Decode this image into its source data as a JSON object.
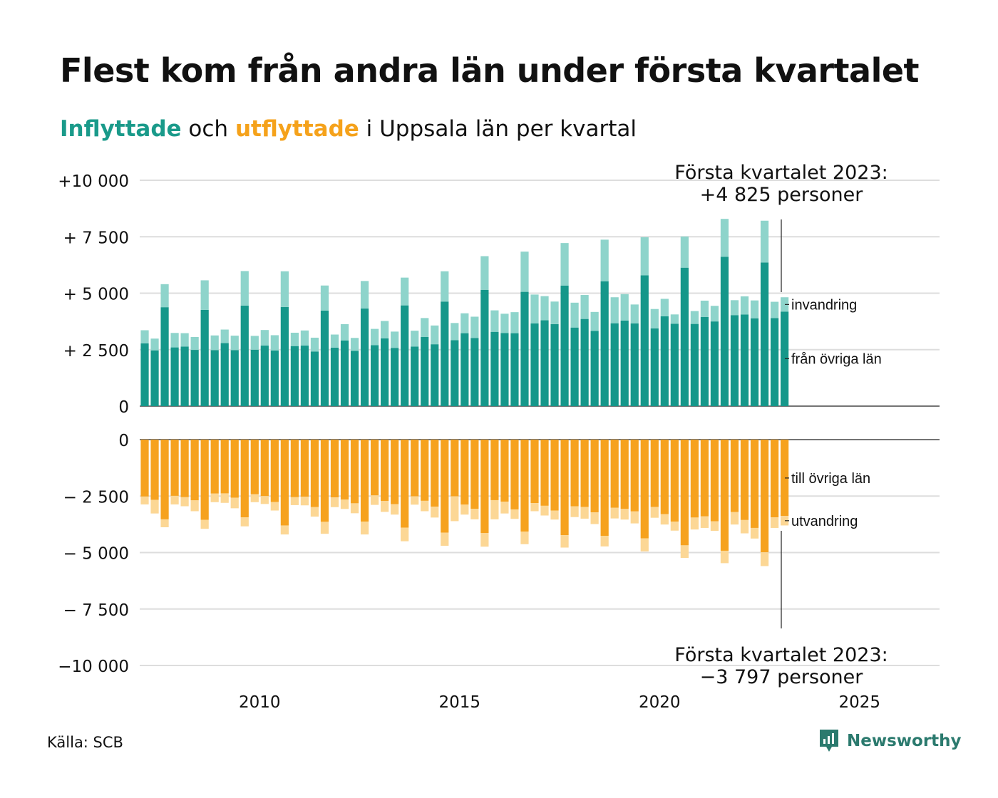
{
  "header": {
    "title": "Flest kom från andra län under första kvartalet",
    "subtitle_in": "Inflyttade",
    "subtitle_mid": " och ",
    "subtitle_out": "utflyttade",
    "subtitle_rest": " i Uppsala län per kvartal"
  },
  "footer": {
    "source": "Källa: SCB",
    "brand": "Newsworthy"
  },
  "colors": {
    "in_dark": "#15978a",
    "in_light": "#8ed4cb",
    "out_dark": "#f6a21e",
    "out_light": "#fcd795",
    "grid": "#dddddd",
    "axis": "#222222"
  },
  "chart_data": {
    "type": "bar",
    "stacked": true,
    "x_axis": {
      "ticks": [
        "2010",
        "2015",
        "2020",
        "2025"
      ],
      "range": [
        "2007-Q1",
        "2027-Q1"
      ]
    },
    "top_panel": {
      "y_ticks": [
        "+10 000",
        "+ 7 500",
        "+ 5 000",
        "+ 2 500",
        "0"
      ],
      "ylim": [
        0,
        10000
      ],
      "series": [
        {
          "name": "från övriga län",
          "color": "#15978a"
        },
        {
          "name": "invandring",
          "color": "#8ed4cb"
        }
      ]
    },
    "bottom_panel": {
      "y_ticks": [
        "0",
        "− 2 500",
        "− 5 000",
        "− 7 500",
        "−10 000"
      ],
      "ylim": [
        -10000,
        0
      ],
      "series": [
        {
          "name": "till övriga län",
          "color": "#f6a21e"
        },
        {
          "name": "utvandring",
          "color": "#fcd795"
        }
      ]
    },
    "annotations": {
      "top_line1": "Första kvartalet 2023:",
      "top_line2": "+4 825 personer",
      "bottom_line1": "Första kvartalet 2023:",
      "bottom_line2": "−3 797 personer"
    },
    "quarters": [
      "2007-Q1",
      "2007-Q2",
      "2007-Q3",
      "2007-Q4",
      "2008-Q1",
      "2008-Q2",
      "2008-Q3",
      "2008-Q4",
      "2009-Q1",
      "2009-Q2",
      "2009-Q3",
      "2009-Q4",
      "2010-Q1",
      "2010-Q2",
      "2010-Q3",
      "2010-Q4",
      "2011-Q1",
      "2011-Q2",
      "2011-Q3",
      "2011-Q4",
      "2012-Q1",
      "2012-Q2",
      "2012-Q3",
      "2012-Q4",
      "2013-Q1",
      "2013-Q2",
      "2013-Q3",
      "2013-Q4",
      "2014-Q1",
      "2014-Q2",
      "2014-Q3",
      "2014-Q4",
      "2015-Q1",
      "2015-Q2",
      "2015-Q3",
      "2015-Q4",
      "2016-Q1",
      "2016-Q2",
      "2016-Q3",
      "2016-Q4",
      "2017-Q1",
      "2017-Q2",
      "2017-Q3",
      "2017-Q4",
      "2018-Q1",
      "2018-Q2",
      "2018-Q3",
      "2018-Q4",
      "2019-Q1",
      "2019-Q2",
      "2019-Q3",
      "2019-Q4",
      "2020-Q1",
      "2020-Q2",
      "2020-Q3",
      "2020-Q4",
      "2021-Q1",
      "2021-Q2",
      "2021-Q3",
      "2021-Q4",
      "2022-Q1",
      "2022-Q2",
      "2022-Q3",
      "2022-Q4",
      "2023-Q1"
    ],
    "in_fran_ovriga_lan": [
      2780,
      2470,
      4380,
      2600,
      2640,
      2490,
      4260,
      2480,
      2790,
      2480,
      4450,
      2500,
      2680,
      2460,
      4390,
      2660,
      2680,
      2420,
      4230,
      2590,
      2910,
      2450,
      4320,
      2700,
      3000,
      2580,
      4460,
      2640,
      3060,
      2740,
      4630,
      2920,
      3230,
      3020,
      5150,
      3290,
      3240,
      3230,
      5060,
      3660,
      3800,
      3630,
      5340,
      3480,
      3860,
      3330,
      5530,
      3670,
      3790,
      3660,
      5790,
      3440,
      3980,
      3650,
      6130,
      3640,
      3950,
      3750,
      6610,
      4030,
      4060,
      3890,
      6360,
      3900,
      4180
    ],
    "in_invandring": [
      580,
      520,
      1020,
      640,
      590,
      570,
      1310,
      650,
      600,
      640,
      1530,
      610,
      690,
      680,
      1580,
      590,
      670,
      610,
      1110,
      580,
      720,
      570,
      1220,
      720,
      770,
      720,
      1230,
      700,
      840,
      830,
      1340,
      760,
      880,
      940,
      1490,
      950,
      850,
      930,
      1780,
      1280,
      1070,
      1000,
      1880,
      1100,
      1060,
      840,
      1840,
      1150,
      1170,
      840,
      1690,
      860,
      770,
      410,
      1380,
      570,
      720,
      690,
      1680,
      660,
      800,
      790,
      1850,
      720,
      640
    ],
    "out_till_ovriga_lan": [
      2520,
      2670,
      3530,
      2490,
      2550,
      2690,
      3550,
      2390,
      2380,
      2570,
      3440,
      2420,
      2500,
      2760,
      3800,
      2550,
      2530,
      2990,
      3640,
      2560,
      2650,
      2820,
      3630,
      2470,
      2720,
      2860,
      3900,
      2510,
      2710,
      2970,
      4120,
      2510,
      2880,
      3060,
      4140,
      2680,
      2750,
      3090,
      4070,
      2810,
      2930,
      3140,
      4230,
      2950,
      2980,
      3220,
      4260,
      3020,
      3070,
      3180,
      4370,
      2980,
      3300,
      3630,
      4680,
      3450,
      3400,
      3620,
      4920,
      3210,
      3560,
      3910,
      4990,
      3440,
      3380
    ],
    "out_utvandring": [
      350,
      600,
      350,
      380,
      400,
      480,
      400,
      380,
      420,
      470,
      400,
      350,
      350,
      380,
      400,
      350,
      380,
      420,
      530,
      430,
      420,
      440,
      570,
      420,
      480,
      460,
      600,
      370,
      460,
      480,
      580,
      1100,
      440,
      470,
      600,
      850,
      520,
      420,
      560,
      360,
      430,
      400,
      550,
      480,
      520,
      520,
      470,
      470,
      470,
      530,
      580,
      480,
      460,
      400,
      560,
      530,
      510,
      420,
      550,
      550,
      590,
      470,
      610,
      470,
      420
    ]
  }
}
